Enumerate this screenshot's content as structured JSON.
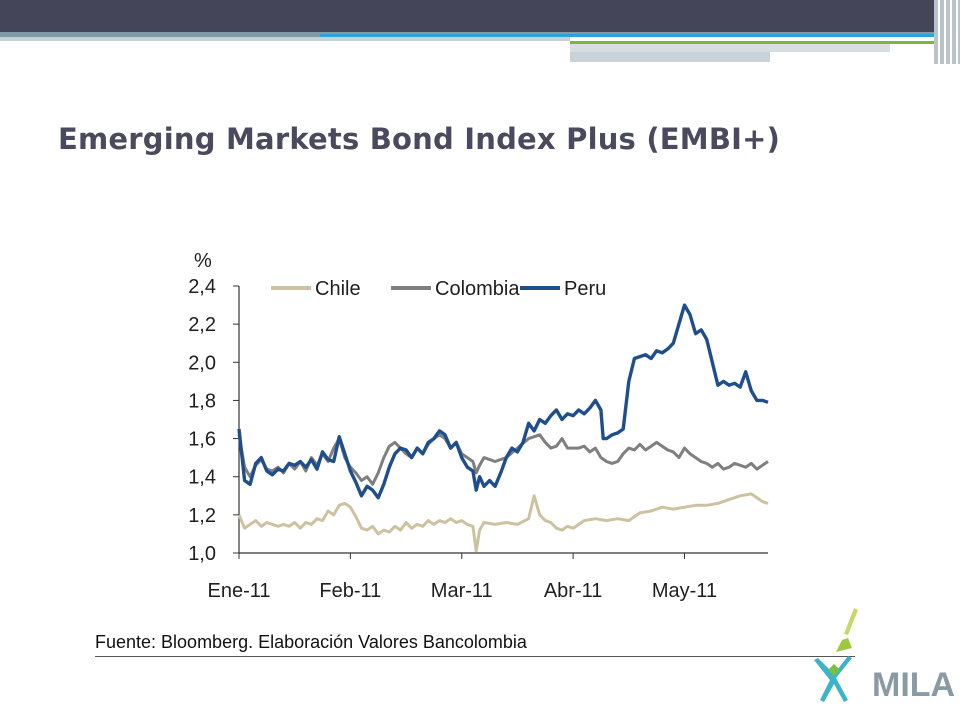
{
  "slide": {
    "title": "Emerging Markets Bond Index Plus (EMBI+)",
    "source": "Fuente: Bloomberg. Elaboración Valores Bancolombia",
    "logo_text": "MILA"
  },
  "colors": {
    "top_bar": "#45455a",
    "accent_blue": "#2aa5d8",
    "accent_green": "#7ab83a",
    "chile": "#cdc2a0",
    "colombia": "#7f7f7f",
    "peru": "#1f4e8c"
  },
  "chart_data": {
    "type": "line",
    "ylabel": "%",
    "ylim": [
      1.0,
      2.4
    ],
    "yticks": [
      "1,0",
      "1,2",
      "1,4",
      "1,6",
      "1,8",
      "2,0",
      "2,2",
      "2,4"
    ],
    "xlim": [
      0,
      4.75
    ],
    "xticks": [
      {
        "x": 0,
        "label": "Ene-11"
      },
      {
        "x": 1,
        "label": "Feb-11"
      },
      {
        "x": 2,
        "label": "Mar-11"
      },
      {
        "x": 3,
        "label": "Abr-11"
      },
      {
        "x": 4,
        "label": "May-11"
      }
    ],
    "legend_position": "top",
    "grid": false,
    "series": [
      {
        "name": "Chile",
        "color": "#cdc2a0",
        "points": [
          [
            0,
            1.2
          ],
          [
            0.05,
            1.13
          ],
          [
            0.1,
            1.15
          ],
          [
            0.15,
            1.17
          ],
          [
            0.2,
            1.14
          ],
          [
            0.25,
            1.16
          ],
          [
            0.3,
            1.15
          ],
          [
            0.35,
            1.14
          ],
          [
            0.4,
            1.15
          ],
          [
            0.45,
            1.14
          ],
          [
            0.5,
            1.16
          ],
          [
            0.55,
            1.13
          ],
          [
            0.6,
            1.16
          ],
          [
            0.65,
            1.15
          ],
          [
            0.7,
            1.18
          ],
          [
            0.75,
            1.17
          ],
          [
            0.8,
            1.22
          ],
          [
            0.85,
            1.2
          ],
          [
            0.9,
            1.25
          ],
          [
            0.95,
            1.26
          ],
          [
            1.0,
            1.24
          ],
          [
            1.05,
            1.19
          ],
          [
            1.1,
            1.13
          ],
          [
            1.15,
            1.12
          ],
          [
            1.2,
            1.14
          ],
          [
            1.25,
            1.1
          ],
          [
            1.3,
            1.12
          ],
          [
            1.35,
            1.11
          ],
          [
            1.4,
            1.14
          ],
          [
            1.45,
            1.12
          ],
          [
            1.5,
            1.16
          ],
          [
            1.55,
            1.13
          ],
          [
            1.6,
            1.15
          ],
          [
            1.65,
            1.14
          ],
          [
            1.7,
            1.17
          ],
          [
            1.75,
            1.15
          ],
          [
            1.8,
            1.17
          ],
          [
            1.85,
            1.16
          ],
          [
            1.9,
            1.18
          ],
          [
            1.95,
            1.16
          ],
          [
            2.0,
            1.17
          ],
          [
            2.05,
            1.15
          ],
          [
            2.1,
            1.14
          ],
          [
            2.13,
            1.01
          ],
          [
            2.16,
            1.12
          ],
          [
            2.2,
            1.16
          ],
          [
            2.3,
            1.15
          ],
          [
            2.4,
            1.16
          ],
          [
            2.5,
            1.15
          ],
          [
            2.6,
            1.18
          ],
          [
            2.65,
            1.3
          ],
          [
            2.7,
            1.2
          ],
          [
            2.75,
            1.17
          ],
          [
            2.8,
            1.16
          ],
          [
            2.85,
            1.13
          ],
          [
            2.9,
            1.12
          ],
          [
            2.95,
            1.14
          ],
          [
            3.0,
            1.13
          ],
          [
            3.1,
            1.17
          ],
          [
            3.2,
            1.18
          ],
          [
            3.3,
            1.17
          ],
          [
            3.4,
            1.18
          ],
          [
            3.5,
            1.17
          ],
          [
            3.6,
            1.21
          ],
          [
            3.7,
            1.22
          ],
          [
            3.8,
            1.24
          ],
          [
            3.9,
            1.23
          ],
          [
            4.0,
            1.24
          ],
          [
            4.1,
            1.25
          ],
          [
            4.2,
            1.25
          ],
          [
            4.3,
            1.26
          ],
          [
            4.4,
            1.28
          ],
          [
            4.5,
            1.3
          ],
          [
            4.6,
            1.31
          ],
          [
            4.7,
            1.27
          ],
          [
            4.75,
            1.26
          ]
        ]
      },
      {
        "name": "Colombia",
        "color": "#7f7f7f",
        "points": [
          [
            0,
            1.62
          ],
          [
            0.05,
            1.45
          ],
          [
            0.1,
            1.4
          ],
          [
            0.15,
            1.46
          ],
          [
            0.2,
            1.49
          ],
          [
            0.25,
            1.44
          ],
          [
            0.3,
            1.43
          ],
          [
            0.35,
            1.45
          ],
          [
            0.4,
            1.42
          ],
          [
            0.45,
            1.47
          ],
          [
            0.5,
            1.44
          ],
          [
            0.55,
            1.48
          ],
          [
            0.6,
            1.43
          ],
          [
            0.65,
            1.5
          ],
          [
            0.7,
            1.46
          ],
          [
            0.75,
            1.52
          ],
          [
            0.8,
            1.48
          ],
          [
            0.85,
            1.55
          ],
          [
            0.9,
            1.6
          ],
          [
            0.95,
            1.5
          ],
          [
            1.0,
            1.45
          ],
          [
            1.05,
            1.42
          ],
          [
            1.1,
            1.38
          ],
          [
            1.15,
            1.4
          ],
          [
            1.2,
            1.36
          ],
          [
            1.25,
            1.42
          ],
          [
            1.3,
            1.5
          ],
          [
            1.35,
            1.56
          ],
          [
            1.4,
            1.58
          ],
          [
            1.45,
            1.55
          ],
          [
            1.5,
            1.52
          ],
          [
            1.55,
            1.5
          ],
          [
            1.6,
            1.55
          ],
          [
            1.65,
            1.52
          ],
          [
            1.7,
            1.57
          ],
          [
            1.75,
            1.6
          ],
          [
            1.8,
            1.62
          ],
          [
            1.85,
            1.6
          ],
          [
            1.9,
            1.55
          ],
          [
            1.95,
            1.58
          ],
          [
            2.0,
            1.52
          ],
          [
            2.05,
            1.5
          ],
          [
            2.1,
            1.48
          ],
          [
            2.13,
            1.42
          ],
          [
            2.16,
            1.46
          ],
          [
            2.2,
            1.5
          ],
          [
            2.3,
            1.48
          ],
          [
            2.4,
            1.5
          ],
          [
            2.5,
            1.55
          ],
          [
            2.6,
            1.6
          ],
          [
            2.7,
            1.62
          ],
          [
            2.75,
            1.58
          ],
          [
            2.8,
            1.55
          ],
          [
            2.85,
            1.56
          ],
          [
            2.9,
            1.6
          ],
          [
            2.95,
            1.55
          ],
          [
            3.0,
            1.55
          ],
          [
            3.05,
            1.55
          ],
          [
            3.1,
            1.56
          ],
          [
            3.15,
            1.53
          ],
          [
            3.2,
            1.55
          ],
          [
            3.25,
            1.5
          ],
          [
            3.3,
            1.48
          ],
          [
            3.35,
            1.47
          ],
          [
            3.4,
            1.48
          ],
          [
            3.45,
            1.52
          ],
          [
            3.5,
            1.55
          ],
          [
            3.55,
            1.54
          ],
          [
            3.6,
            1.57
          ],
          [
            3.65,
            1.54
          ],
          [
            3.7,
            1.56
          ],
          [
            3.75,
            1.58
          ],
          [
            3.8,
            1.56
          ],
          [
            3.85,
            1.54
          ],
          [
            3.9,
            1.53
          ],
          [
            3.95,
            1.5
          ],
          [
            4.0,
            1.55
          ],
          [
            4.05,
            1.52
          ],
          [
            4.1,
            1.5
          ],
          [
            4.15,
            1.48
          ],
          [
            4.2,
            1.47
          ],
          [
            4.25,
            1.45
          ],
          [
            4.3,
            1.47
          ],
          [
            4.35,
            1.44
          ],
          [
            4.4,
            1.45
          ],
          [
            4.45,
            1.47
          ],
          [
            4.5,
            1.46
          ],
          [
            4.55,
            1.45
          ],
          [
            4.6,
            1.47
          ],
          [
            4.65,
            1.44
          ],
          [
            4.7,
            1.46
          ],
          [
            4.75,
            1.48
          ]
        ]
      },
      {
        "name": "Peru",
        "color": "#1f4e8c",
        "points": [
          [
            0,
            1.65
          ],
          [
            0.05,
            1.38
          ],
          [
            0.1,
            1.36
          ],
          [
            0.15,
            1.47
          ],
          [
            0.2,
            1.5
          ],
          [
            0.25,
            1.43
          ],
          [
            0.3,
            1.41
          ],
          [
            0.35,
            1.44
          ],
          [
            0.4,
            1.43
          ],
          [
            0.45,
            1.47
          ],
          [
            0.5,
            1.46
          ],
          [
            0.55,
            1.48
          ],
          [
            0.6,
            1.45
          ],
          [
            0.65,
            1.49
          ],
          [
            0.7,
            1.44
          ],
          [
            0.75,
            1.53
          ],
          [
            0.8,
            1.49
          ],
          [
            0.85,
            1.48
          ],
          [
            0.9,
            1.61
          ],
          [
            0.95,
            1.52
          ],
          [
            1.0,
            1.43
          ],
          [
            1.05,
            1.37
          ],
          [
            1.1,
            1.3
          ],
          [
            1.15,
            1.35
          ],
          [
            1.2,
            1.33
          ],
          [
            1.25,
            1.29
          ],
          [
            1.3,
            1.36
          ],
          [
            1.35,
            1.45
          ],
          [
            1.4,
            1.52
          ],
          [
            1.45,
            1.55
          ],
          [
            1.5,
            1.54
          ],
          [
            1.55,
            1.5
          ],
          [
            1.6,
            1.55
          ],
          [
            1.65,
            1.52
          ],
          [
            1.7,
            1.58
          ],
          [
            1.75,
            1.6
          ],
          [
            1.8,
            1.64
          ],
          [
            1.85,
            1.62
          ],
          [
            1.9,
            1.55
          ],
          [
            1.95,
            1.58
          ],
          [
            2.0,
            1.5
          ],
          [
            2.05,
            1.45
          ],
          [
            2.1,
            1.43
          ],
          [
            2.13,
            1.33
          ],
          [
            2.16,
            1.4
          ],
          [
            2.2,
            1.35
          ],
          [
            2.25,
            1.38
          ],
          [
            2.3,
            1.35
          ],
          [
            2.35,
            1.42
          ],
          [
            2.4,
            1.5
          ],
          [
            2.45,
            1.55
          ],
          [
            2.5,
            1.53
          ],
          [
            2.55,
            1.58
          ],
          [
            2.6,
            1.68
          ],
          [
            2.65,
            1.64
          ],
          [
            2.7,
            1.7
          ],
          [
            2.75,
            1.68
          ],
          [
            2.8,
            1.72
          ],
          [
            2.85,
            1.75
          ],
          [
            2.9,
            1.7
          ],
          [
            2.95,
            1.73
          ],
          [
            3.0,
            1.72
          ],
          [
            3.05,
            1.75
          ],
          [
            3.1,
            1.73
          ],
          [
            3.15,
            1.76
          ],
          [
            3.2,
            1.8
          ],
          [
            3.25,
            1.75
          ],
          [
            3.27,
            1.6
          ],
          [
            3.3,
            1.6
          ],
          [
            3.35,
            1.62
          ],
          [
            3.4,
            1.63
          ],
          [
            3.45,
            1.65
          ],
          [
            3.5,
            1.9
          ],
          [
            3.55,
            2.02
          ],
          [
            3.6,
            2.03
          ],
          [
            3.65,
            2.04
          ],
          [
            3.7,
            2.02
          ],
          [
            3.75,
            2.06
          ],
          [
            3.8,
            2.05
          ],
          [
            3.85,
            2.07
          ],
          [
            3.9,
            2.1
          ],
          [
            3.95,
            2.2
          ],
          [
            4.0,
            2.3
          ],
          [
            4.05,
            2.25
          ],
          [
            4.1,
            2.15
          ],
          [
            4.15,
            2.17
          ],
          [
            4.2,
            2.12
          ],
          [
            4.25,
            2.0
          ],
          [
            4.3,
            1.88
          ],
          [
            4.35,
            1.9
          ],
          [
            4.4,
            1.88
          ],
          [
            4.45,
            1.89
          ],
          [
            4.5,
            1.87
          ],
          [
            4.55,
            1.95
          ],
          [
            4.6,
            1.85
          ],
          [
            4.65,
            1.8
          ],
          [
            4.7,
            1.8
          ],
          [
            4.75,
            1.79
          ]
        ]
      }
    ]
  }
}
